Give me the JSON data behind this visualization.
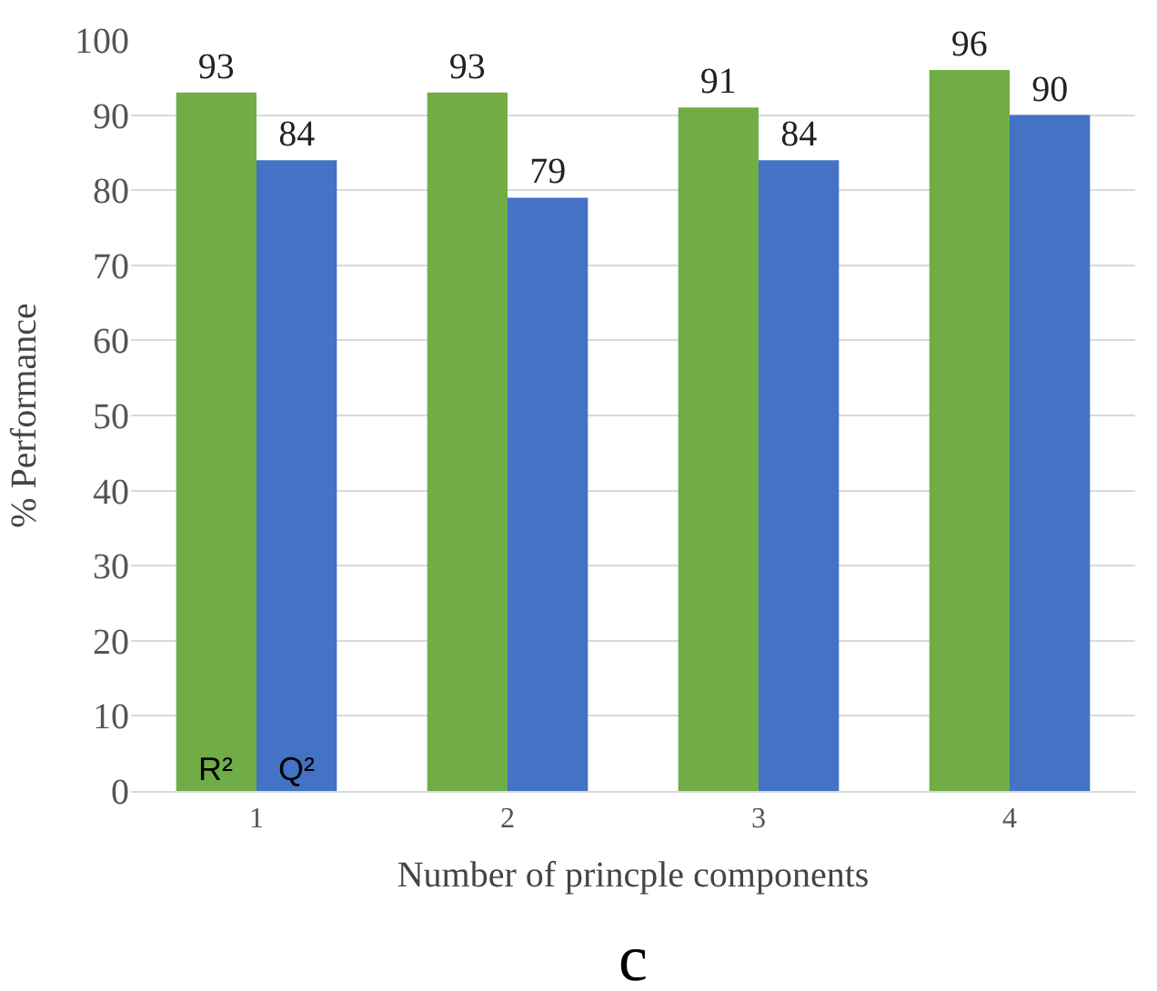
{
  "chart_data": {
    "type": "bar",
    "xlabel": "Number of princple components",
    "ylabel": "% Performance",
    "categories": [
      "1",
      "2",
      "3",
      "4"
    ],
    "series": [
      {
        "name": "R²",
        "color": "#70ad47",
        "values": [
          93,
          93,
          91,
          96
        ]
      },
      {
        "name": "Q²",
        "color": "#4472c4",
        "values": [
          84,
          79,
          84,
          90
        ]
      }
    ],
    "ylim": [
      0,
      100
    ],
    "yticks": [
      0,
      10,
      20,
      30,
      40,
      50,
      60,
      70,
      80,
      90,
      100
    ],
    "grid": "y",
    "data_labels": true,
    "legend": false,
    "annotations": [
      "c"
    ]
  }
}
